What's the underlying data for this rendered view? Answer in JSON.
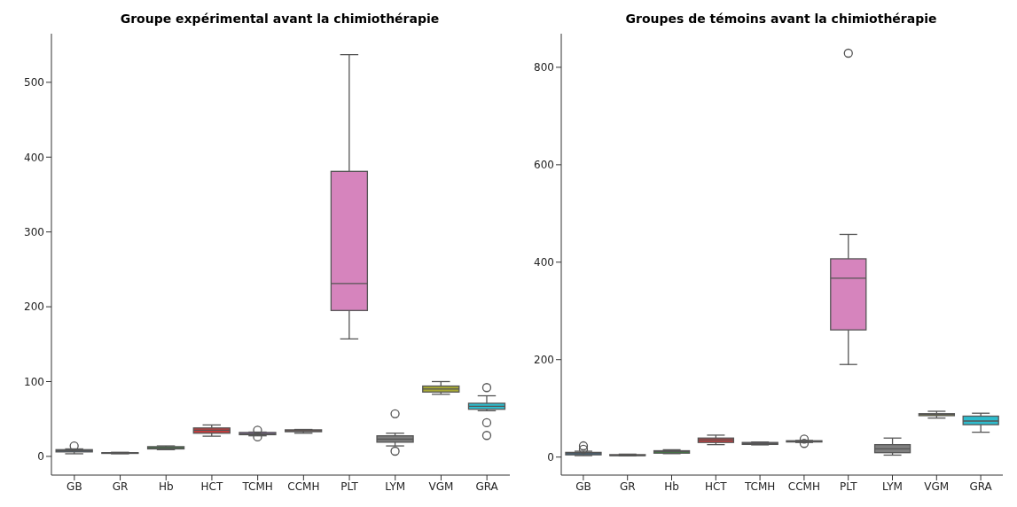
{
  "chart_data": [
    {
      "type": "box",
      "title": "Groupe expérimental avant la chimiothérapie",
      "categories": [
        "GB",
        "GR",
        "Hb",
        "HCT",
        "TCMH",
        "CCMH",
        "PLT",
        "LYM",
        "VGM",
        "GRA"
      ],
      "colors": [
        "#3274a1",
        "#e1812c",
        "#3a923a",
        "#c03d3e",
        "#9372b2",
        "#845b53",
        "#d684bd",
        "#7f7f7f",
        "#a9aa35",
        "#2ebccd"
      ],
      "ylim": [
        -25,
        565
      ],
      "yticks": [
        0,
        100,
        200,
        300,
        400,
        500
      ],
      "grid": false,
      "boxes": [
        {
          "low": 3.5,
          "q1": 6,
          "median": 7.5,
          "q3": 9,
          "high": 10,
          "outliers": [
            14
          ]
        },
        {
          "low": 3.5,
          "q1": 4,
          "median": 4.5,
          "q3": 5,
          "high": 5.5
        },
        {
          "low": 9,
          "q1": 10,
          "median": 11.5,
          "q3": 13,
          "high": 14
        },
        {
          "low": 27,
          "q1": 31,
          "median": 35,
          "q3": 38,
          "high": 42
        },
        {
          "low": 27.5,
          "q1": 29,
          "median": 30,
          "q3": 32,
          "high": 32.5,
          "outliers": [
            35,
            26
          ]
        },
        {
          "low": 31,
          "q1": 33,
          "median": 34,
          "q3": 35.5,
          "high": 36
        },
        {
          "low": 157,
          "q1": 195,
          "median": 231,
          "q3": 381,
          "high": 537
        },
        {
          "low": 14,
          "q1": 19,
          "median": 23,
          "q3": 27.5,
          "high": 31,
          "outliers": [
            57,
            7
          ]
        },
        {
          "low": 83,
          "q1": 86,
          "median": 90,
          "q3": 94,
          "high": 100
        },
        {
          "low": 61,
          "q1": 63,
          "median": 67,
          "q3": 71,
          "high": 81,
          "outliers": [
            92,
            45,
            28
          ]
        }
      ]
    },
    {
      "type": "box",
      "title": "Groupes de témoins avant la chimiothérapie",
      "categories": [
        "GB",
        "GR",
        "Hb",
        "HCT",
        "TCMH",
        "CCMH",
        "PLT",
        "LYM",
        "VGM",
        "GRA"
      ],
      "colors": [
        "#3274a1",
        "#e1812c",
        "#3a923a",
        "#c03d3e",
        "#9372b2",
        "#845b53",
        "#d684bd",
        "#7f7f7f",
        "#a9aa35",
        "#2ebccd"
      ],
      "ylim": [
        -37,
        869
      ],
      "yticks": [
        0,
        200,
        400,
        600,
        800
      ],
      "grid": false,
      "boxes": [
        {
          "low": 3,
          "q1": 4.6,
          "median": 7,
          "q3": 9.6,
          "high": 12,
          "outliers": [
            23,
            16
          ]
        },
        {
          "low": 2.5,
          "q1": 3,
          "median": 3.5,
          "q3": 5,
          "high": 6
        },
        {
          "low": 7,
          "q1": 8,
          "median": 11,
          "q3": 13,
          "high": 15
        },
        {
          "low": 25.5,
          "q1": 30,
          "median": 35,
          "q3": 39,
          "high": 45
        },
        {
          "low": 25,
          "q1": 26,
          "median": 28,
          "q3": 30,
          "high": 31
        },
        {
          "low": 30,
          "q1": 31,
          "median": 32,
          "q3": 33.5,
          "high": 34,
          "outliers": [
            37,
            28
          ]
        },
        {
          "low": 190,
          "q1": 261,
          "median": 367,
          "q3": 407,
          "high": 457,
          "outliers": [
            829
          ]
        },
        {
          "low": 4,
          "q1": 9,
          "median": 17,
          "q3": 25.5,
          "high": 39
        },
        {
          "low": 80,
          "q1": 85,
          "median": 87.5,
          "q3": 89,
          "high": 94
        },
        {
          "low": 51,
          "q1": 66.5,
          "median": 74,
          "q3": 84,
          "high": 90
        }
      ]
    }
  ]
}
